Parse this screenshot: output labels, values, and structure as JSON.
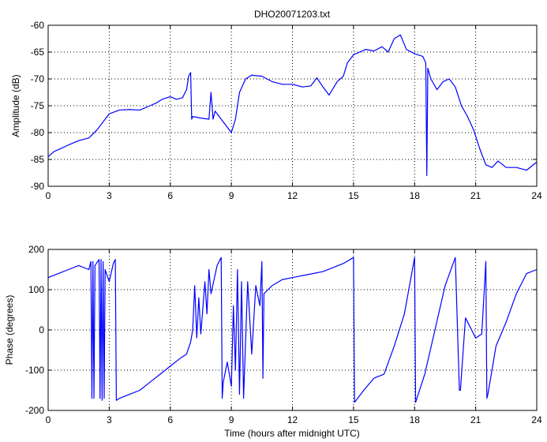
{
  "chart_data": [
    {
      "type": "line",
      "title": "DHO20071203.txt",
      "xlabel": "",
      "ylabel": "Amplitude (dB)",
      "xlim": [
        0,
        24
      ],
      "ylim": [
        -90,
        -60
      ],
      "xticks": [
        0,
        3,
        6,
        9,
        12,
        15,
        18,
        21,
        24
      ],
      "yticks": [
        -90,
        -85,
        -80,
        -75,
        -70,
        -65,
        -60
      ],
      "grid": true,
      "line_color": "#0000ff",
      "series": [
        {
          "x": [
            0,
            0.3,
            0.6,
            1.0,
            1.5,
            2.0,
            2.4,
            2.7,
            3.0,
            3.5,
            4.0,
            4.5,
            5.0,
            5.3,
            5.6,
            6.0,
            6.3,
            6.6,
            6.8,
            6.9,
            7.0,
            7.05,
            7.1,
            7.5,
            7.9,
            8.0,
            8.1,
            8.2,
            8.5,
            8.8,
            9.0,
            9.2,
            9.4,
            9.7,
            10.0,
            10.5,
            11.0,
            11.5,
            12.0,
            12.5,
            12.9,
            13.2,
            13.5,
            13.8,
            14.2,
            14.5,
            14.7,
            15.0,
            15.3,
            15.6,
            16.0,
            16.4,
            16.7,
            17.0,
            17.3,
            17.6,
            18.0,
            18.4,
            18.55,
            18.6,
            18.65,
            18.8,
            19.1,
            19.4,
            19.7,
            20.0,
            20.3,
            20.6,
            20.9,
            21.2,
            21.5,
            21.8,
            22.1,
            22.5,
            23.0,
            23.5,
            24.0
          ],
          "y": [
            -84.5,
            -83.5,
            -83.0,
            -82.3,
            -81.5,
            -81.0,
            -79.5,
            -78.0,
            -76.5,
            -75.8,
            -75.7,
            -75.8,
            -75.0,
            -74.5,
            -73.8,
            -73.3,
            -73.8,
            -73.5,
            -72.0,
            -69.5,
            -68.8,
            -77.5,
            -77.0,
            -77.3,
            -77.5,
            -72.5,
            -77.5,
            -76.0,
            -77.5,
            -79.0,
            -80.0,
            -77.5,
            -72.5,
            -70.0,
            -69.3,
            -69.5,
            -70.5,
            -71.0,
            -71.0,
            -71.5,
            -71.3,
            -69.8,
            -71.5,
            -73.0,
            -70.5,
            -69.5,
            -67.0,
            -65.5,
            -65.0,
            -64.5,
            -64.8,
            -64.0,
            -65.0,
            -62.5,
            -61.8,
            -64.5,
            -65.3,
            -65.8,
            -67.0,
            -88.0,
            -68.0,
            -70.0,
            -72.0,
            -70.5,
            -70.0,
            -71.5,
            -75.0,
            -77.0,
            -79.5,
            -83.0,
            -86.0,
            -86.5,
            -85.3,
            -86.5,
            -86.5,
            -87.0,
            -85.5
          ]
        }
      ]
    },
    {
      "type": "line",
      "title": "",
      "xlabel": "Time (hours after midnight UTC)",
      "ylabel": "Phase (degrees)",
      "xlim": [
        0,
        24
      ],
      "ylim": [
        -200,
        200
      ],
      "xticks": [
        0,
        3,
        6,
        9,
        12,
        15,
        18,
        21,
        24
      ],
      "yticks": [
        -200,
        -100,
        0,
        100,
        200
      ],
      "grid": true,
      "line_color": "#0000ff",
      "series": [
        {
          "x": [
            0,
            0.5,
            1.0,
            1.5,
            2.0,
            2.1,
            2.15,
            2.2,
            2.25,
            2.3,
            2.5,
            2.55,
            2.6,
            2.65,
            2.7,
            2.75,
            2.8,
            3.0,
            3.2,
            3.3,
            3.35,
            3.5,
            4.0,
            4.5,
            5.0,
            5.5,
            6.0,
            6.5,
            6.8,
            7.0,
            7.1,
            7.2,
            7.3,
            7.4,
            7.5,
            7.7,
            7.8,
            7.9,
            8.0,
            8.3,
            8.5,
            8.55,
            8.6,
            8.8,
            9.0,
            9.1,
            9.2,
            9.3,
            9.4,
            9.5,
            9.6,
            9.8,
            10.0,
            10.2,
            10.4,
            10.5,
            10.55,
            10.6,
            10.8,
            11.0,
            11.5,
            12.0,
            12.5,
            13.0,
            13.5,
            14.0,
            14.5,
            15.0,
            15.05,
            15.5,
            16.0,
            16.5,
            17.0,
            17.5,
            18.0,
            18.05,
            18.5,
            19.0,
            19.5,
            20.0,
            20.2,
            20.25,
            20.5,
            21.0,
            21.3,
            21.5,
            21.55,
            21.6,
            21.8,
            22.0,
            22.5,
            23.0,
            23.5,
            24.0
          ],
          "y": [
            130,
            140,
            150,
            160,
            150,
            170,
            -170,
            170,
            -170,
            160,
            175,
            -170,
            175,
            -175,
            170,
            -170,
            150,
            120,
            165,
            175,
            -175,
            -170,
            -160,
            -150,
            -130,
            -110,
            -90,
            -70,
            -60,
            -30,
            0,
            110,
            -20,
            80,
            -10,
            120,
            40,
            150,
            90,
            160,
            180,
            -170,
            -130,
            -80,
            -140,
            60,
            -100,
            150,
            -160,
            120,
            -170,
            120,
            -60,
            110,
            60,
            170,
            -120,
            90,
            100,
            110,
            125,
            130,
            135,
            140,
            145,
            155,
            165,
            180,
            -180,
            -150,
            -120,
            -110,
            -40,
            40,
            180,
            -180,
            -110,
            0,
            110,
            180,
            -150,
            -150,
            30,
            -20,
            -10,
            170,
            -170,
            -160,
            -100,
            -40,
            20,
            90,
            140,
            150
          ]
        }
      ]
    }
  ]
}
